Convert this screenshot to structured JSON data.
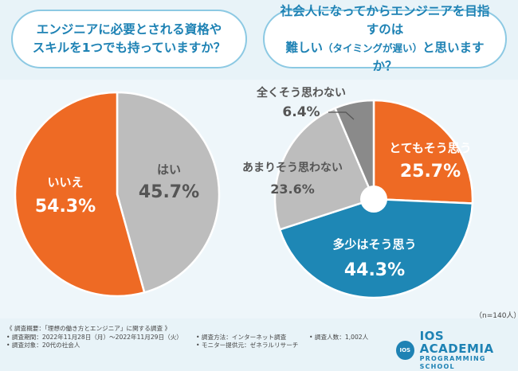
{
  "questions": {
    "q1": "エンジニアに必要とされる資格や\nスキルを1つでも持っていますか？",
    "q2_line1": "社会人になってからエンジニアを目指すのは",
    "q2_line2a": "難しい",
    "q2_line2b": "（タイミングが遅い）",
    "q2_line2c": "と思いますか？"
  },
  "chart_data": [
    {
      "type": "pie",
      "title": "エンジニアに必要とされる資格やスキルを1つでも持っていますか？",
      "slices": [
        {
          "label": "はい",
          "value": 45.7,
          "display": "45.7%",
          "color": "#bdbdbd"
        },
        {
          "label": "いいえ",
          "value": 54.3,
          "display": "54.3%",
          "color": "#ee6a24"
        }
      ]
    },
    {
      "type": "pie",
      "title": "社会人になってからエンジニアを目指すのは難しい（タイミングが遅い）と思いますか？",
      "slices": [
        {
          "label": "とてもそう思う",
          "value": 25.7,
          "display": "25.7%",
          "color": "#ee6a24"
        },
        {
          "label": "多少はそう思う",
          "value": 44.3,
          "display": "44.3%",
          "color": "#1e87b5"
        },
        {
          "label": "あまりそう思わない",
          "value": 23.6,
          "display": "23.6%",
          "color": "#bdbdbd"
        },
        {
          "label": "全くそう思わない",
          "value": 6.4,
          "display": "6.4%",
          "color": "#8a8a8a"
        }
      ]
    }
  ],
  "sample_note": "（n=140人）",
  "survey": {
    "heading": "《 調査概要：「理想の働き方とエンジニア」に関する調査 》",
    "period": "• 調査期間：2022年11月28日（月）〜2022年11月29日（火）",
    "method": "• 調査方法：インターネット調査",
    "count": "• 調査人数：1,002人",
    "target": "• 調査対象：20代の社会人",
    "provider": "• モニター提供元：ゼネラルリサーチ"
  },
  "logo": {
    "badge": "IOS",
    "line1": "IOS ACADEMIA",
    "line2": "PROGRAMMING SCHOOL"
  },
  "colors": {
    "accent": "#1e82b4",
    "orange": "#ee6a24",
    "gray": "#bdbdbd",
    "dark_gray": "#8a8a8a"
  }
}
